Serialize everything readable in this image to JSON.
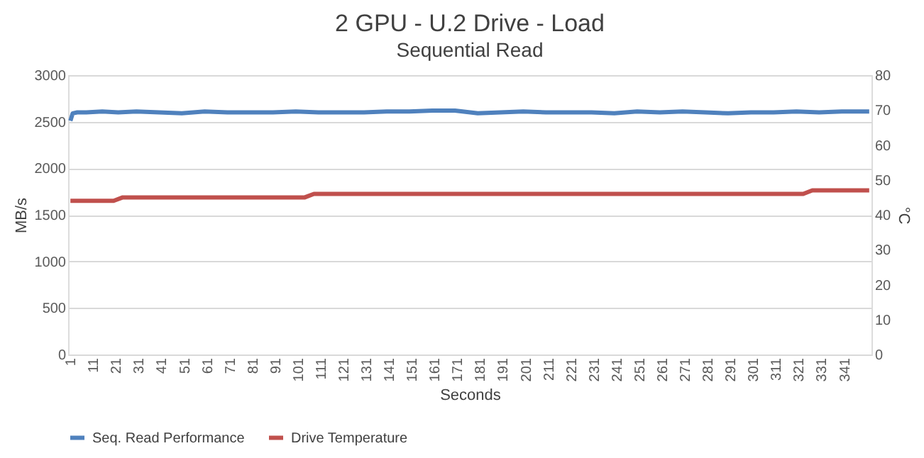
{
  "chart_data": {
    "type": "line",
    "title": "2 GPU - U.2 Drive - Load",
    "subtitle": "Sequential Read",
    "xlabel": "Seconds",
    "ylabel": "MB/s",
    "y2label": "°C",
    "xlim": [
      0,
      353
    ],
    "xticks": [
      1,
      11,
      21,
      31,
      41,
      51,
      61,
      71,
      81,
      91,
      101,
      111,
      121,
      131,
      141,
      151,
      161,
      171,
      181,
      191,
      201,
      211,
      221,
      231,
      241,
      251,
      261,
      271,
      281,
      291,
      301,
      311,
      321,
      331,
      341
    ],
    "ylim": [
      0,
      3000
    ],
    "yticks": [
      0,
      500,
      1000,
      1500,
      2000,
      2500,
      3000
    ],
    "y2lim": [
      0,
      80
    ],
    "y2ticks": [
      0,
      10,
      20,
      30,
      40,
      50,
      60,
      70,
      80
    ],
    "grid": "y",
    "legend": "bottom",
    "line_style": "solid",
    "marker": "none",
    "series": [
      {
        "name": "Seq. Read Performance",
        "color": "#4f81bd",
        "x": [
          1,
          2,
          4,
          8,
          15,
          22,
          30,
          40,
          50,
          60,
          70,
          80,
          90,
          100,
          110,
          120,
          130,
          140,
          150,
          160,
          170,
          180,
          190,
          200,
          210,
          220,
          230,
          240,
          250,
          260,
          270,
          280,
          290,
          300,
          310,
          320,
          330,
          340,
          352
        ],
        "values": [
          2510,
          2590,
          2600,
          2600,
          2610,
          2600,
          2610,
          2600,
          2590,
          2610,
          2600,
          2600,
          2600,
          2610,
          2600,
          2600,
          2600,
          2610,
          2610,
          2620,
          2620,
          2590,
          2600,
          2610,
          2600,
          2600,
          2600,
          2590,
          2610,
          2600,
          2610,
          2600,
          2590,
          2600,
          2600,
          2610,
          2600,
          2610,
          2610
        ]
      },
      {
        "name": "Drive Temperature",
        "color": "#c0504d",
        "axis": "y2",
        "x": [
          1,
          20,
          24,
          104,
          108,
          323,
          327,
          352
        ],
        "values": [
          44,
          44,
          45,
          45,
          46,
          46,
          47,
          47
        ]
      }
    ]
  }
}
